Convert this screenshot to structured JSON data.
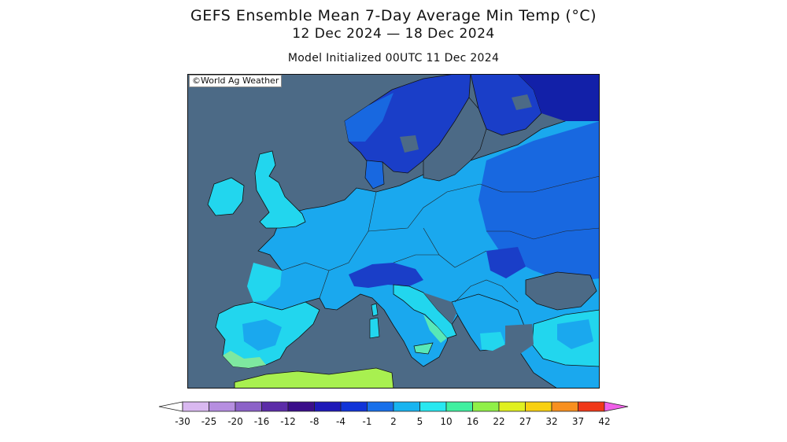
{
  "header": {
    "title": "GEFS Ensemble Mean 7-Day Average Min Temp (°C)",
    "dates": "12 Dec 2024 — 18 Dec 2024",
    "init": "Model Initialized 00UTC 11 Dec 2024"
  },
  "map": {
    "credit": "©World Ag Weather",
    "ocean_color": "#4c6a86"
  },
  "legend": {
    "labels": [
      "-30",
      "-25",
      "-20",
      "-16",
      "-12",
      "-8",
      "-4",
      "-1",
      "2",
      "5",
      "10",
      "16",
      "22",
      "27",
      "32",
      "37",
      "42"
    ],
    "colors": [
      "#d9b8f0",
      "#b68ee0",
      "#8c62c8",
      "#5c2ca8",
      "#3a0e8a",
      "#1e18b8",
      "#1034d8",
      "#1870ea",
      "#18b4f0",
      "#28e8f0",
      "#40f0a0",
      "#90f048",
      "#e0f020",
      "#f8d010",
      "#f89020",
      "#f03818",
      "#e81a98",
      "#f060e8"
    ]
  }
}
